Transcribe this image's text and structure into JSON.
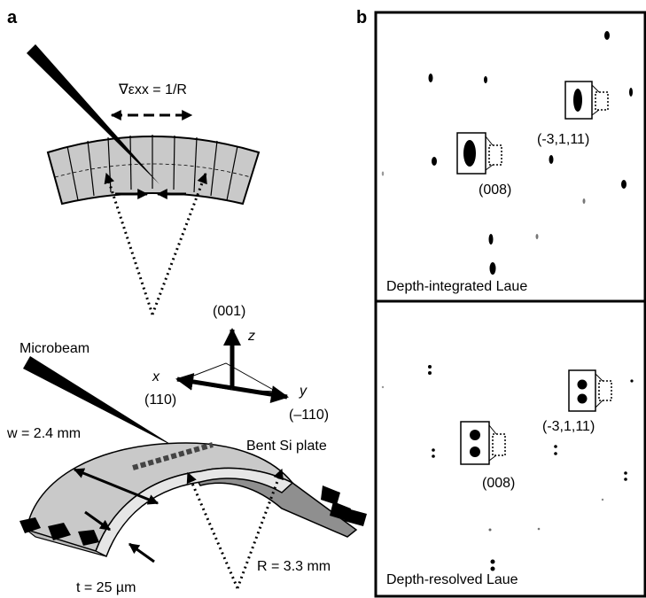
{
  "panel_a": {
    "letter": "a",
    "gradient_label": "∇εxx = 1/R",
    "beam_label": "Microbeam",
    "axis_z_index": "(001)",
    "axis_z": "z",
    "axis_x": "x",
    "axis_x_index": "(110)",
    "axis_y": "y",
    "axis_y_index": "(–110)",
    "width_label": "w = 2.4 mm",
    "plate_label": "Bent Si plate",
    "radius_label": "R = 3.3 mm",
    "thickness_label": "t = 25 µm"
  },
  "panel_b": {
    "letter": "b",
    "top": {
      "caption": "Depth-integrated Laue",
      "callout_1": "(-3,1,11)",
      "callout_2": "(008)"
    },
    "bottom": {
      "caption": "Depth-resolved Laue",
      "callout_1": "(-3,1,11)",
      "callout_2": "(008)"
    }
  },
  "colors": {
    "plate_gray": "#c9c9c9",
    "plate_dark": "#8f8f8f",
    "ink": "#000000"
  }
}
